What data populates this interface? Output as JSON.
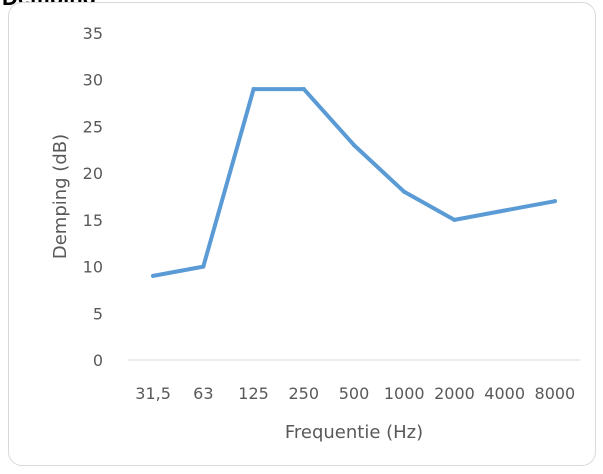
{
  "chart_data": {
    "type": "line",
    "title": "Demping",
    "xlabel": "Frequentie (Hz)",
    "ylabel": "Demping (dB)",
    "categories": [
      "31,5",
      "63",
      "125",
      "250",
      "500",
      "1000",
      "2000",
      "4000",
      "8000"
    ],
    "series": [
      {
        "values": [
          9,
          10,
          29,
          29,
          23,
          18,
          15,
          16,
          17
        ],
        "color": "#5b9bd5"
      }
    ],
    "ylim": [
      0,
      35
    ],
    "yticks": [
      0,
      5,
      10,
      15,
      20,
      25,
      30,
      35
    ],
    "grid": false,
    "legend": "none"
  }
}
